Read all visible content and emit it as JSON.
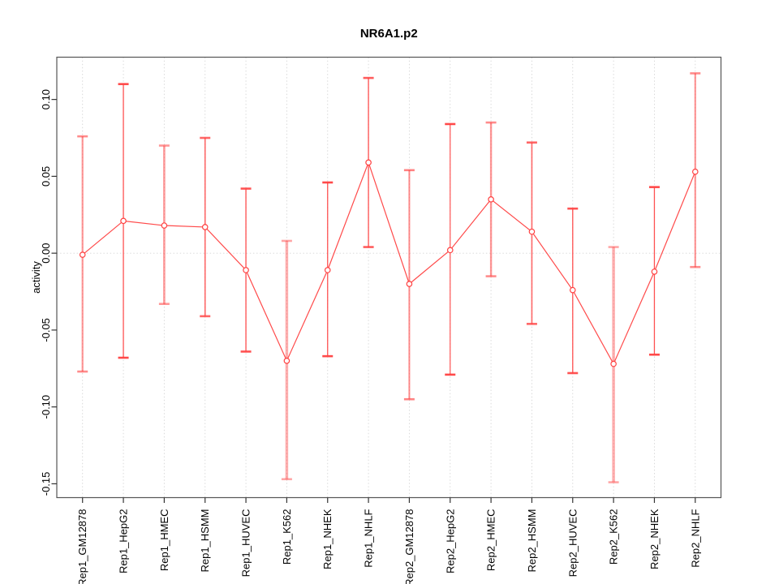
{
  "page": {
    "background": "#ffffff"
  },
  "chart_data": {
    "type": "line",
    "title": "NR6A1.p2",
    "xlabel": "",
    "ylabel": "activity",
    "categories": [
      "Rep1_GM12878",
      "Rep1_HepG2",
      "Rep1_HMEC",
      "Rep1_HSMM",
      "Rep1_HUVEC",
      "Rep1_K562",
      "Rep1_NHEK",
      "Rep1_NHLF",
      "Rep2_GM12878",
      "Rep2_HepG2",
      "Rep2_HMEC",
      "Rep2_HSMM",
      "Rep2_HUVEC",
      "Rep2_K562",
      "Rep2_NHEK",
      "Rep2_NHLF"
    ],
    "series": [
      {
        "name": "activity",
        "values": [
          -0.001,
          0.021,
          0.018,
          0.017,
          -0.011,
          -0.07,
          -0.011,
          0.059,
          -0.02,
          0.002,
          0.035,
          0.014,
          -0.024,
          -0.072,
          -0.012,
          0.053
        ]
      }
    ],
    "error_bars": {
      "upper": [
        0.076,
        0.11,
        0.07,
        0.075,
        0.042,
        0.008,
        0.046,
        0.114,
        0.054,
        0.084,
        0.085,
        0.072,
        0.029,
        0.004,
        0.043,
        0.117
      ],
      "lower": [
        -0.077,
        -0.068,
        -0.033,
        -0.041,
        -0.064,
        -0.147,
        -0.067,
        0.004,
        -0.095,
        -0.079,
        -0.015,
        -0.046,
        -0.078,
        -0.149,
        -0.066,
        -0.009
      ]
    },
    "bar_stroke_widths": [
      2.2,
      1.3,
      2.7,
      1.7,
      1.4,
      3.5,
      1.3,
      1.5,
      2.0,
      1.2,
      2.4,
      1.7,
      1.4,
      3.5,
      1.3,
      2.2
    ],
    "bar_opacities": [
      0.55,
      0.9,
      0.5,
      0.75,
      0.85,
      0.42,
      0.9,
      0.8,
      0.6,
      0.9,
      0.55,
      0.75,
      0.85,
      0.42,
      0.9,
      0.55
    ],
    "point_style": "open-circle",
    "ylim": [
      -0.159,
      0.1275
    ],
    "xlim": [
      0.37,
      16.63
    ],
    "yticks": {
      "values": [
        0.1,
        0.05,
        0,
        -0.05,
        -0.1,
        -0.15
      ],
      "labels": [
        "0.10",
        "0.05",
        "0.00",
        "-0.05",
        "-0.10",
        "-0.15"
      ]
    },
    "grid": {
      "vertical_per_category": true,
      "horizontal_at_zero": true,
      "style": "dotted"
    },
    "legend": null,
    "colors": {
      "line": "#FF4040",
      "point_stroke": "#FF4040",
      "point_fill": "#FFFFFF",
      "errorbar": "#FF4040",
      "grid": "#D6D6D6",
      "box": "#555555",
      "tick": "#333333",
      "text": "#000000"
    }
  }
}
